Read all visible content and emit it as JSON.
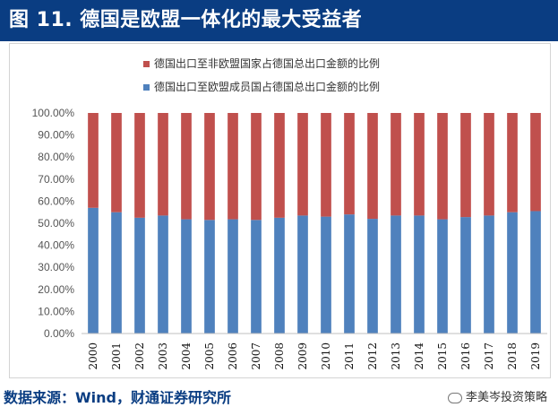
{
  "figure": {
    "title": "图 11. 德国是欧盟一体化的最大受益者",
    "source": "数据来源：Wind，财通证券研究所",
    "watermark": "李美岑投资策略"
  },
  "colors": {
    "title_bg": "#0a3d82",
    "series_non_eu": "#c0504d",
    "series_eu": "#4f81bd"
  },
  "chart_data": {
    "type": "bar",
    "stacked": true,
    "categories": [
      "2000",
      "2001",
      "2002",
      "2003",
      "2004",
      "2005",
      "2006",
      "2007",
      "2008",
      "2009",
      "2010",
      "2011",
      "2012",
      "2013",
      "2014",
      "2015",
      "2016",
      "2017",
      "2018",
      "2019"
    ],
    "series": [
      {
        "name": "德国出口至欧盟成员国占德国总出口金额的比例",
        "color": "#4f81bd",
        "values": [
          57.0,
          55.0,
          52.5,
          53.5,
          51.8,
          51.5,
          51.8,
          51.5,
          52.5,
          53.5,
          53.0,
          54.0,
          52.0,
          53.5,
          53.5,
          51.8,
          52.8,
          53.5,
          55.0,
          55.5
        ]
      },
      {
        "name": "德国出口至非欧盟国家占德国总出口金额的比例",
        "color": "#c0504d",
        "values": [
          43.0,
          45.0,
          47.5,
          46.5,
          48.2,
          48.5,
          48.2,
          48.5,
          47.5,
          46.5,
          47.0,
          46.0,
          48.0,
          46.5,
          46.5,
          48.2,
          47.2,
          46.5,
          45.0,
          44.5
        ]
      }
    ],
    "legend": [
      "德国出口至非欧盟国家占德国总出口金额的比例",
      "德国出口至欧盟成员国占德国总出口金额的比例"
    ],
    "yticks": [
      "0.00%",
      "10.00%",
      "20.00%",
      "30.00%",
      "40.00%",
      "50.00%",
      "60.00%",
      "70.00%",
      "80.00%",
      "90.00%",
      "100.00%"
    ],
    "ylim": [
      0,
      100
    ],
    "title": "",
    "xlabel": "",
    "ylabel": "",
    "legend_position": "top-center",
    "grid": false
  }
}
